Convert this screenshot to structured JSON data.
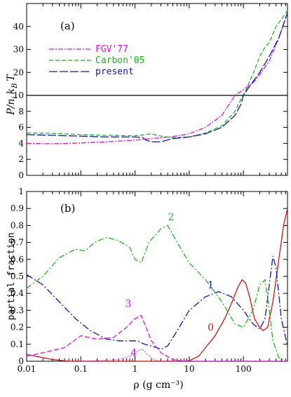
{
  "chart_data": [
    {
      "type": "line",
      "panel_label": "(a)",
      "xlabel": "",
      "ylabel": "P/n_i k_B T",
      "ylabel_parts": {
        "p": "P",
        "n": "n",
        "i": "i",
        "k": "k",
        "b": "B",
        "t": "T"
      },
      "xscale": "log",
      "xlim": [
        0.01,
        650
      ],
      "ylim": [
        0,
        50
      ],
      "x_ticks": [
        "0.01",
        "0.1",
        "1",
        "10",
        "100"
      ],
      "y_ticks": [
        "0",
        "2",
        "4",
        "6",
        "8",
        "10",
        "20",
        "30",
        "40"
      ],
      "y_tick_values": [
        0,
        2,
        4,
        6,
        8,
        10,
        20,
        30,
        40
      ],
      "reference_line": 10,
      "legend_position": "top-left",
      "series": [
        {
          "name": "FGV'77",
          "color": "#e010e0",
          "dash": "7 2 2 2",
          "points": [
            [
              0.01,
              4.0
            ],
            [
              0.03,
              3.95
            ],
            [
              0.1,
              4.05
            ],
            [
              0.3,
              4.2
            ],
            [
              1,
              4.4
            ],
            [
              2,
              4.6
            ],
            [
              3,
              4.7
            ],
            [
              5,
              4.85
            ],
            [
              10,
              5.2
            ],
            [
              20,
              6.0
            ],
            [
              40,
              7.5
            ],
            [
              70,
              10.0
            ],
            [
              100,
              12.5
            ],
            [
              150,
              15.5
            ],
            [
              200,
              19.0
            ],
            [
              300,
              25.0
            ],
            [
              450,
              35.0
            ],
            [
              650,
              46.0
            ]
          ]
        },
        {
          "name": "Carbon'05",
          "color": "#18b818",
          "dash": "6 3",
          "points": [
            [
              0.01,
              5.3
            ],
            [
              0.03,
              5.25
            ],
            [
              0.1,
              5.1
            ],
            [
              0.3,
              5.0
            ],
            [
              1,
              4.95
            ],
            [
              1.5,
              5.1
            ],
            [
              2,
              5.2
            ],
            [
              3,
              4.9
            ],
            [
              5,
              4.7
            ],
            [
              10,
              4.8
            ],
            [
              20,
              5.3
            ],
            [
              40,
              6.2
            ],
            [
              70,
              8.0
            ],
            [
              90,
              9.5
            ],
            [
              110,
              12.0
            ],
            [
              130,
              16.0
            ],
            [
              160,
              21.0
            ],
            [
              200,
              27.0
            ],
            [
              250,
              31.0
            ],
            [
              300,
              33.0
            ],
            [
              400,
              40.0
            ],
            [
              500,
              43.0
            ],
            [
              650,
              47.0
            ]
          ]
        },
        {
          "name": "present",
          "color": "#1010d0",
          "dash": "12 3",
          "points": [
            [
              0.01,
              5.1
            ],
            [
              0.03,
              5.0
            ],
            [
              0.1,
              4.9
            ],
            [
              0.3,
              4.8
            ],
            [
              1,
              4.8
            ],
            [
              1.4,
              4.7
            ],
            [
              1.6,
              4.4
            ],
            [
              2,
              4.2
            ],
            [
              3,
              4.2
            ],
            [
              5,
              4.6
            ],
            [
              10,
              4.8
            ],
            [
              20,
              5.2
            ],
            [
              40,
              6.0
            ],
            [
              70,
              7.5
            ],
            [
              90,
              8.9
            ],
            [
              100,
              10.0
            ],
            [
              130,
              14.0
            ],
            [
              200,
              20.0
            ],
            [
              300,
              27.0
            ],
            [
              450,
              35.0
            ],
            [
              650,
              46.0
            ]
          ]
        }
      ]
    },
    {
      "type": "line",
      "panel_label": "(b)",
      "xlabel": "ρ (g cm⁻³)",
      "ylabel": "partial fraction",
      "xscale": "log",
      "xlim": [
        0.01,
        650
      ],
      "ylim": [
        0,
        1
      ],
      "x_ticks": [
        "0.01",
        "0.1",
        "1",
        "10",
        "100"
      ],
      "y_ticks": [
        "0",
        "0.1",
        "0.2",
        "0.3",
        "0.4",
        "0.5",
        "0.6",
        "0.7",
        "0.8",
        "0.9",
        "1"
      ],
      "series": [
        {
          "name": "0",
          "color": "#e01010",
          "dash": "",
          "label_at": [
            25,
            0.18
          ],
          "points": [
            [
              0.01,
              0.04
            ],
            [
              0.03,
              0.01
            ],
            [
              0.06,
              0.0
            ],
            [
              1,
              0.0
            ],
            [
              8,
              0.0
            ],
            [
              10,
              0.003
            ],
            [
              15,
              0.03
            ],
            [
              20,
              0.08
            ],
            [
              30,
              0.15
            ],
            [
              45,
              0.25
            ],
            [
              60,
              0.34
            ],
            [
              80,
              0.44
            ],
            [
              95,
              0.48
            ],
            [
              110,
              0.46
            ],
            [
              130,
              0.38
            ],
            [
              160,
              0.25
            ],
            [
              200,
              0.2
            ],
            [
              230,
              0.18
            ],
            [
              280,
              0.2
            ],
            [
              350,
              0.35
            ],
            [
              450,
              0.6
            ],
            [
              550,
              0.8
            ],
            [
              650,
              0.9
            ]
          ]
        },
        {
          "name": "1",
          "color": "#1010d0",
          "dash": "10 3 2 3",
          "label_at": [
            25,
            0.43
          ],
          "points": [
            [
              0.01,
              0.51
            ],
            [
              0.02,
              0.45
            ],
            [
              0.04,
              0.35
            ],
            [
              0.08,
              0.25
            ],
            [
              0.15,
              0.18
            ],
            [
              0.3,
              0.13
            ],
            [
              0.5,
              0.12
            ],
            [
              0.8,
              0.12
            ],
            [
              1.1,
              0.12
            ],
            [
              1.5,
              0.1
            ],
            [
              2,
              0.09
            ],
            [
              2.5,
              0.08
            ],
            [
              3,
              0.07
            ],
            [
              4,
              0.09
            ],
            [
              6,
              0.18
            ],
            [
              10,
              0.3
            ],
            [
              20,
              0.38
            ],
            [
              35,
              0.41
            ],
            [
              60,
              0.38
            ],
            [
              100,
              0.3
            ],
            [
              150,
              0.22
            ],
            [
              200,
              0.19
            ],
            [
              250,
              0.25
            ],
            [
              300,
              0.45
            ],
            [
              350,
              0.62
            ],
            [
              400,
              0.55
            ],
            [
              500,
              0.25
            ],
            [
              650,
              0.09
            ]
          ]
        },
        {
          "name": "2",
          "color": "#18b818",
          "dash": "8 3 2 3",
          "label_at": [
            4.6,
            0.83
          ],
          "points": [
            [
              0.01,
              0.43
            ],
            [
              0.02,
              0.5
            ],
            [
              0.04,
              0.61
            ],
            [
              0.08,
              0.66
            ],
            [
              0.12,
              0.65
            ],
            [
              0.18,
              0.7
            ],
            [
              0.3,
              0.73
            ],
            [
              0.5,
              0.71
            ],
            [
              0.8,
              0.67
            ],
            [
              1,
              0.6
            ],
            [
              1.3,
              0.58
            ],
            [
              1.8,
              0.7
            ],
            [
              3,
              0.78
            ],
            [
              4,
              0.8
            ],
            [
              6,
              0.7
            ],
            [
              10,
              0.58
            ],
            [
              20,
              0.48
            ],
            [
              40,
              0.35
            ],
            [
              70,
              0.22
            ],
            [
              100,
              0.2
            ],
            [
              150,
              0.3
            ],
            [
              200,
              0.45
            ],
            [
              250,
              0.48
            ],
            [
              300,
              0.3
            ],
            [
              350,
              0.12
            ],
            [
              450,
              0.02
            ],
            [
              650,
              0.0
            ]
          ]
        },
        {
          "name": "3",
          "color": "#e010e0",
          "dash": "7 3",
          "label_at": [
            0.75,
            0.32
          ],
          "points": [
            [
              0.01,
              0.03
            ],
            [
              0.02,
              0.05
            ],
            [
              0.05,
              0.08
            ],
            [
              0.1,
              0.15
            ],
            [
              0.2,
              0.13
            ],
            [
              0.4,
              0.14
            ],
            [
              0.7,
              0.2
            ],
            [
              1,
              0.25
            ],
            [
              1.3,
              0.27
            ],
            [
              1.6,
              0.2
            ],
            [
              2,
              0.12
            ],
            [
              3,
              0.05
            ],
            [
              5,
              0.01
            ],
            [
              8,
              0.0
            ],
            [
              650,
              0.0
            ]
          ]
        },
        {
          "name": "4",
          "color": "#c010c0",
          "dash": "1 2",
          "label_at": [
            0.95,
            0.03
          ],
          "points": [
            [
              0.1,
              0.0
            ],
            [
              0.2,
              0.003
            ],
            [
              0.5,
              0.01
            ],
            [
              0.8,
              0.03
            ],
            [
              1.1,
              0.06
            ],
            [
              1.4,
              0.07
            ],
            [
              1.7,
              0.04
            ],
            [
              2.2,
              0.01
            ],
            [
              3,
              0.0
            ],
            [
              650,
              0.0
            ]
          ]
        }
      ]
    }
  ]
}
